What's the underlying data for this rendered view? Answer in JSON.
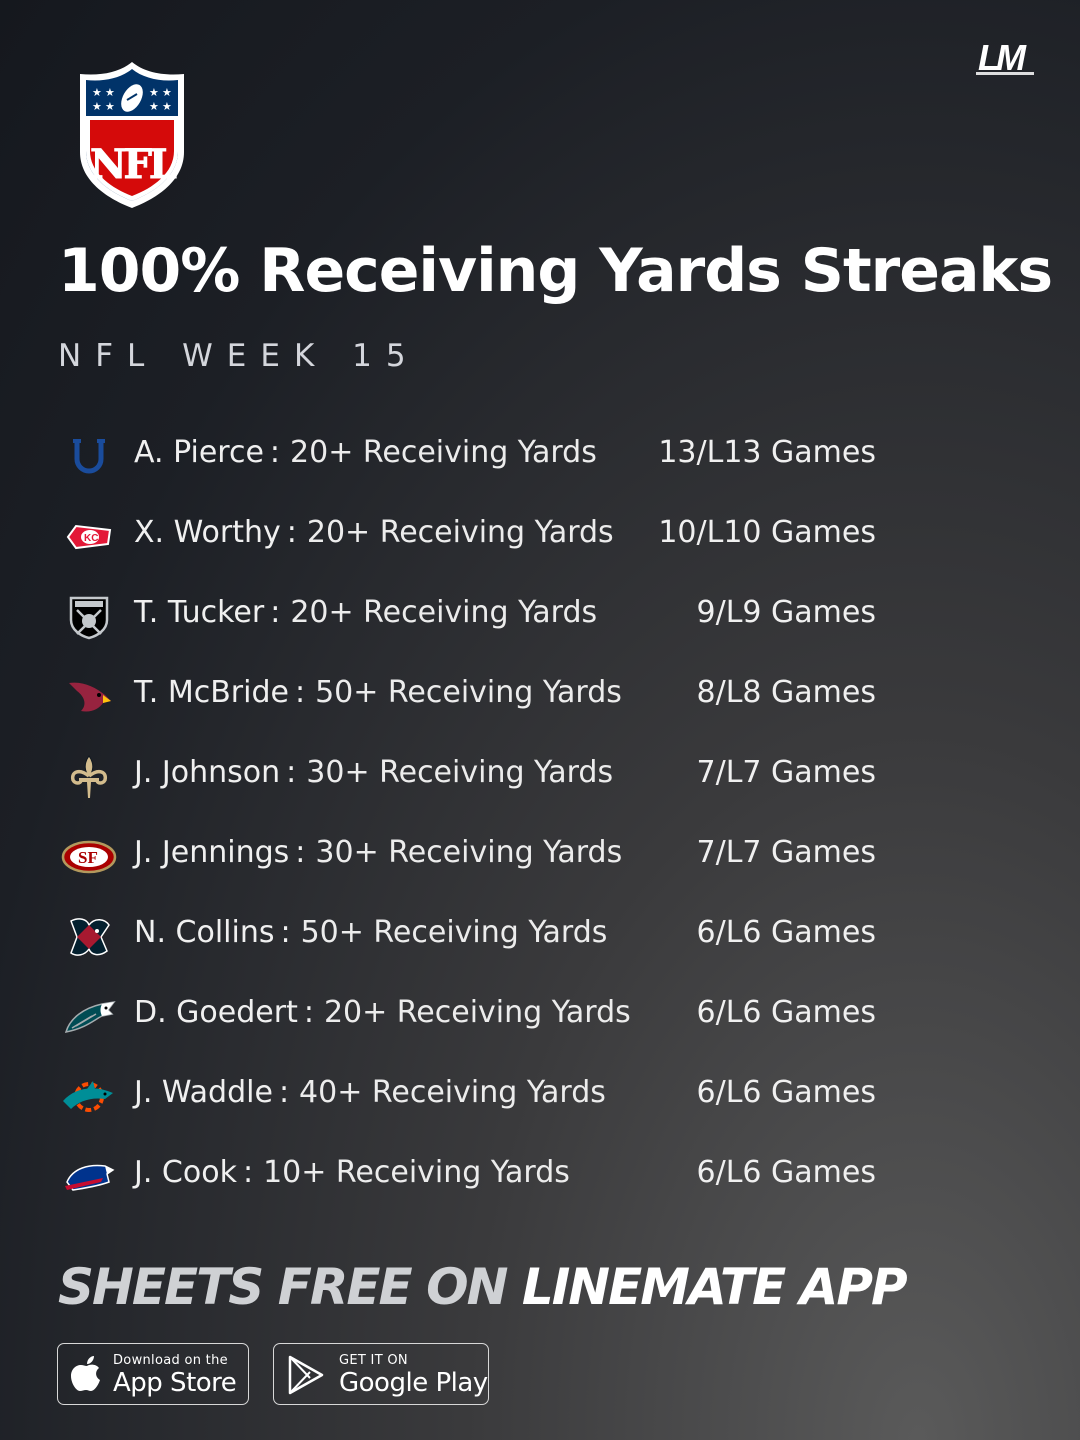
{
  "brand": {
    "mark_text": "LM"
  },
  "logo": {
    "league_text": "NFL"
  },
  "header": {
    "title": "100% Receiving Yards Streaks",
    "subtitle": "NFL WEEK 15"
  },
  "rows": [
    {
      "team_icon": "colts-icon",
      "player": "A. Pierce",
      "prop": "20+ Receiving Yards",
      "record": "13/L13 Games"
    },
    {
      "team_icon": "chiefs-icon",
      "player": "X. Worthy",
      "prop": "20+ Receiving Yards",
      "record": "10/L10 Games"
    },
    {
      "team_icon": "raiders-icon",
      "player": "T. Tucker",
      "prop": "20+ Receiving Yards",
      "record": "9/L9 Games"
    },
    {
      "team_icon": "cardinals-icon",
      "player": "T. McBride",
      "prop": "50+ Receiving Yards",
      "record": "8/L8 Games"
    },
    {
      "team_icon": "saints-icon",
      "player": "J. Johnson",
      "prop": "30+ Receiving Yards",
      "record": "7/L7 Games"
    },
    {
      "team_icon": "49ers-icon",
      "player": "J. Jennings",
      "prop": "30+ Receiving Yards",
      "record": "7/L7 Games"
    },
    {
      "team_icon": "texans-icon",
      "player": "N. Collins",
      "prop": "50+ Receiving Yards",
      "record": "6/L6 Games"
    },
    {
      "team_icon": "eagles-icon",
      "player": "D. Goedert",
      "prop": "20+ Receiving Yards",
      "record": "6/L6 Games"
    },
    {
      "team_icon": "dolphins-icon",
      "player": "J. Waddle",
      "prop": "40+ Receiving Yards",
      "record": "6/L6 Games"
    },
    {
      "team_icon": "bills-icon",
      "player": "J. Cook",
      "prop": "10+ Receiving Yards",
      "record": "6/L6 Games"
    }
  ],
  "promo": {
    "part1": "SHEETS FREE ON",
    "part2": "LINEMATE APP"
  },
  "stores": {
    "apple": {
      "small": "Download on the",
      "big": "App Store"
    },
    "google": {
      "small": "GET IT ON",
      "big": "Google Play"
    }
  },
  "colors": {
    "nfl_blue": "#013369",
    "nfl_red": "#d50a0a",
    "background": "#1c1f25"
  }
}
